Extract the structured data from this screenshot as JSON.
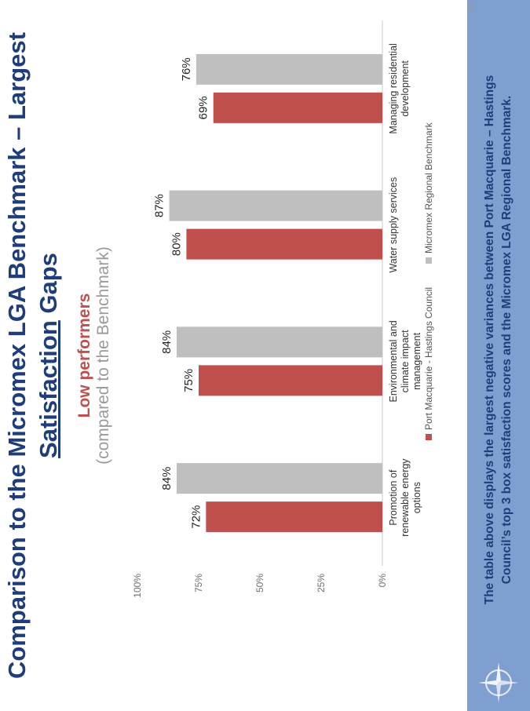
{
  "slide": {
    "title_part1": "Comparison to the Micromex LGA Benchmark – Largest",
    "title_part2_underlined": "Satisfaction",
    "title_part3": " Gaps",
    "subtitle_main": "Low performers",
    "subtitle_sub": "(compared to the Benchmark)",
    "footer_text_line1": "The table above displays the largest negative variances between Port Macquarie – Hastings",
    "footer_text_line2": "Council’s top 3 box satisfaction scores and the Micromex LGA Regional Benchmark.",
    "page_number": "19",
    "colors": {
      "title": "#1f3d7a",
      "series1": "#c0504d",
      "series2": "#bfbfbf",
      "banner": "#7f9fd0"
    },
    "icons": [
      "compass-logo-icon"
    ]
  },
  "chart_data": {
    "type": "bar",
    "categories": [
      [
        "Promotion of",
        "renewable energy",
        "options"
      ],
      [
        "Environmental and",
        "climate impact",
        "management"
      ],
      [
        "Water supply services"
      ],
      [
        "Managing residential",
        "development"
      ]
    ],
    "series": [
      {
        "name": "Port Macquarie - Hastings Council",
        "values": [
          72,
          75,
          80,
          69
        ],
        "labels": [
          "72%",
          "75%",
          "80%",
          "69%"
        ]
      },
      {
        "name": "Micromex Regional Benchmark",
        "values": [
          84,
          84,
          87,
          76
        ],
        "labels": [
          "84%",
          "84%",
          "87%",
          "76%"
        ]
      }
    ],
    "yticks": [
      "0%",
      "25%",
      "50%",
      "75%",
      "100%"
    ],
    "ylim": [
      0,
      100
    ],
    "legend_position": "bottom"
  }
}
